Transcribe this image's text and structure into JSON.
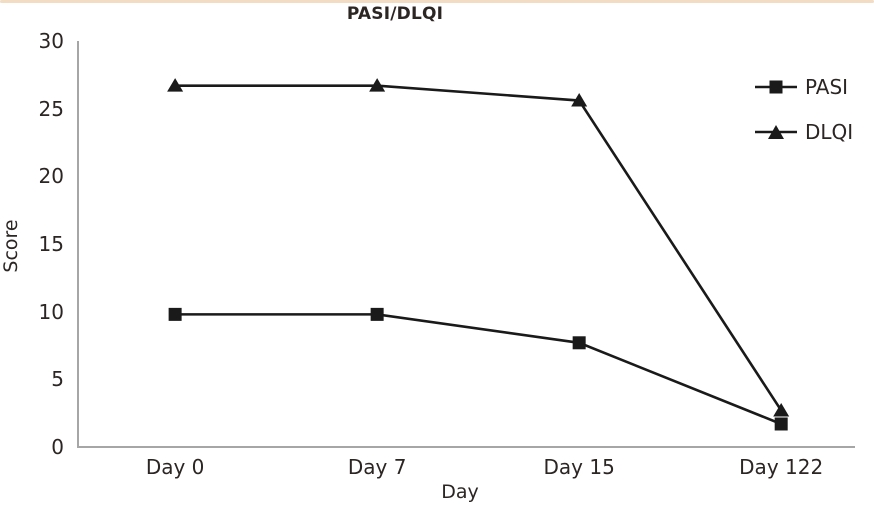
{
  "accent_top_border_color": "#f2dcc4",
  "chart_data": {
    "type": "line",
    "title": "PASI/DLQI",
    "xlabel": "Day",
    "ylabel": "Score",
    "categories": [
      "Day 0",
      "Day 7",
      "Day 15",
      "Day 122"
    ],
    "series": [
      {
        "name": "PASI",
        "marker": "square",
        "color": "#1a1a1a",
        "values": [
          9.8,
          9.8,
          7.7,
          1.7
        ]
      },
      {
        "name": "DLQI",
        "marker": "triangle",
        "color": "#1a1a1a",
        "values": [
          26.7,
          26.7,
          25.6,
          2.7
        ]
      }
    ],
    "ylim": [
      0,
      30
    ],
    "yticks": [
      0,
      5,
      10,
      15,
      20,
      25,
      30
    ],
    "grid": false,
    "legend_position": "top-right",
    "axis_color": "#a6a6a6",
    "text_color": "#2b2523"
  }
}
